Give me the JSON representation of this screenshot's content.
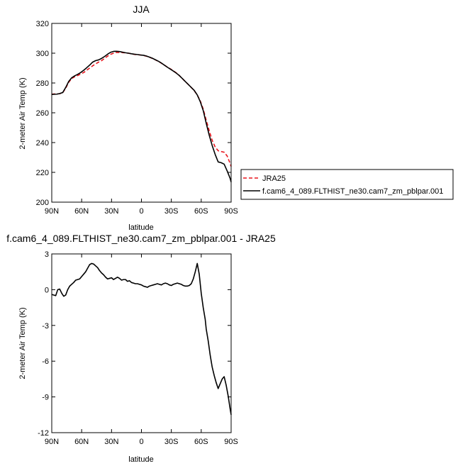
{
  "chart_data": [
    {
      "type": "line",
      "title": "JJA",
      "xlabel": "latitude",
      "ylabel": "2-meter Air Temp (K)",
      "xlim": [
        90,
        -90
      ],
      "ylim": [
        200,
        320
      ],
      "xticks": [
        90,
        60,
        30,
        0,
        -30,
        -60,
        -90
      ],
      "xtick_labels": [
        "90N",
        "60N",
        "30N",
        "0",
        "30S",
        "60S",
        "90S"
      ],
      "yticks": [
        200,
        220,
        240,
        260,
        280,
        300,
        320
      ],
      "ytick_labels": [
        "200",
        "220",
        "240",
        "260",
        "280",
        "300",
        "320"
      ],
      "legend_position": "right",
      "series": [
        {
          "name": "JRA25",
          "color": "#e8141c",
          "style": "dashed",
          "x": [
            90,
            88,
            85,
            82,
            79,
            76,
            73,
            70,
            67,
            64,
            61,
            58,
            55,
            52,
            49,
            46,
            43,
            40,
            37,
            34,
            31,
            28,
            25,
            22,
            19,
            16,
            13,
            10,
            7,
            4,
            1,
            -2,
            -5,
            -8,
            -11,
            -14,
            -17,
            -20,
            -23,
            -26,
            -29,
            -32,
            -35,
            -38,
            -41,
            -44,
            -47,
            -50,
            -53,
            -56,
            -59,
            -62,
            -65,
            -68,
            -71,
            -74,
            -77,
            -80,
            -83,
            -86,
            -89,
            -90
          ],
          "y": [
            272.5,
            272.6,
            272.7,
            272.8,
            273.5,
            276.5,
            280.5,
            283.0,
            284.2,
            285.0,
            286.0,
            287.0,
            288.5,
            290.0,
            291.5,
            292.8,
            294.0,
            295.0,
            296.5,
            298.0,
            299.2,
            300.0,
            300.5,
            300.5,
            300.4,
            300.2,
            300.0,
            299.6,
            299.2,
            299.0,
            298.8,
            298.5,
            298.0,
            297.3,
            296.5,
            295.5,
            294.5,
            293.3,
            292.0,
            290.7,
            289.5,
            288.2,
            286.8,
            285.0,
            283.0,
            281.0,
            279.0,
            277.0,
            274.8,
            272.0,
            268.0,
            262.5,
            255.0,
            248.0,
            241.5,
            237.0,
            234.5,
            234.0,
            233.5,
            231.0,
            226.0,
            224.0
          ]
        },
        {
          "name": "f.cam6_4_089.FLTHIST_ne30.cam7_zm_pblpar.001",
          "color": "#000000",
          "style": "solid",
          "x": [
            90,
            88,
            85,
            82,
            79,
            76,
            73,
            70,
            67,
            64,
            61,
            58,
            55,
            52,
            49,
            46,
            43,
            40,
            37,
            34,
            31,
            28,
            25,
            22,
            19,
            16,
            13,
            10,
            7,
            4,
            1,
            -2,
            -5,
            -8,
            -11,
            -14,
            -17,
            -20,
            -23,
            -26,
            -29,
            -32,
            -35,
            -38,
            -41,
            -44,
            -47,
            -50,
            -53,
            -56,
            -59,
            -62,
            -65,
            -68,
            -71,
            -74,
            -77,
            -80,
            -83,
            -86,
            -89,
            -90
          ],
          "y": [
            272.3,
            272.4,
            272.5,
            272.9,
            273.6,
            277.0,
            281.0,
            283.5,
            284.8,
            285.8,
            287.0,
            288.5,
            290.2,
            292.0,
            294.0,
            295.0,
            295.5,
            296.5,
            297.8,
            299.3,
            300.6,
            301.2,
            301.3,
            301.1,
            300.7,
            300.3,
            300.0,
            299.6,
            299.3,
            299.1,
            298.8,
            298.6,
            298.1,
            297.4,
            296.6,
            295.6,
            294.6,
            293.4,
            292.0,
            290.6,
            289.3,
            288.0,
            286.6,
            285.0,
            283.0,
            281.0,
            279.0,
            277.0,
            275.0,
            272.0,
            267.5,
            261.5,
            253.0,
            245.0,
            238.0,
            232.0,
            227.0,
            226.5,
            225.5,
            221.0,
            216.0,
            213.5
          ]
        }
      ]
    },
    {
      "type": "line",
      "title": "f.cam6_4_089.FLTHIST_ne30.cam7_zm_pblpar.001 - JRA25",
      "xlabel": "latitude",
      "ylabel": "2-meter Air Temp (K)",
      "xlim": [
        90,
        -90
      ],
      "ylim": [
        -12,
        3
      ],
      "xticks": [
        90,
        60,
        30,
        0,
        -30,
        -60,
        -90
      ],
      "xtick_labels": [
        "90N",
        "60N",
        "30N",
        "0",
        "30S",
        "60S",
        "90S"
      ],
      "yticks": [
        -12,
        -9,
        -6,
        -3,
        0,
        3
      ],
      "ytick_labels": [
        "-12",
        "-9",
        "-6",
        "-3",
        "0",
        "3"
      ],
      "series": [
        {
          "color": "#000000",
          "style": "solid",
          "x": [
            90,
            88,
            86,
            84,
            82,
            80,
            78,
            76,
            74,
            72,
            70,
            68,
            66,
            64,
            62,
            60,
            58,
            56,
            54,
            52,
            50,
            48,
            46,
            44,
            42,
            40,
            38,
            36,
            34,
            32,
            30,
            28,
            26,
            24,
            22,
            20,
            18,
            16,
            14,
            12,
            10,
            8,
            6,
            4,
            2,
            0,
            -2,
            -4,
            -6,
            -8,
            -10,
            -12,
            -14,
            -16,
            -18,
            -20,
            -22,
            -24,
            -26,
            -28,
            -30,
            -32,
            -34,
            -36,
            -38,
            -40,
            -42,
            -44,
            -46,
            -48,
            -50,
            -52,
            -54,
            -56,
            -58,
            -60,
            -62,
            -64,
            -65,
            -67,
            -69,
            -71,
            -73,
            -75,
            -77,
            -79,
            -81,
            -83,
            -85,
            -87,
            -89,
            -90
          ],
          "y": [
            -0.4,
            -0.45,
            -0.5,
            0.0,
            0.05,
            -0.3,
            -0.55,
            -0.45,
            0.0,
            0.3,
            0.45,
            0.6,
            0.8,
            0.85,
            0.9,
            1.1,
            1.3,
            1.5,
            1.8,
            2.1,
            2.2,
            2.15,
            2.0,
            1.85,
            1.6,
            1.4,
            1.25,
            1.05,
            0.9,
            0.95,
            1.0,
            0.85,
            0.95,
            1.05,
            0.95,
            0.8,
            0.85,
            0.85,
            0.7,
            0.75,
            0.6,
            0.55,
            0.5,
            0.5,
            0.45,
            0.4,
            0.3,
            0.25,
            0.2,
            0.3,
            0.35,
            0.4,
            0.45,
            0.5,
            0.45,
            0.4,
            0.5,
            0.55,
            0.5,
            0.4,
            0.35,
            0.45,
            0.5,
            0.55,
            0.5,
            0.45,
            0.35,
            0.3,
            0.3,
            0.35,
            0.5,
            0.9,
            1.5,
            2.2,
            1.3,
            -0.3,
            -1.5,
            -2.5,
            -3.3,
            -4.3,
            -5.5,
            -6.5,
            -7.2,
            -7.8,
            -8.3,
            -7.9,
            -7.5,
            -7.3,
            -8.0,
            -8.9,
            -10.0,
            -10.5
          ]
        }
      ]
    }
  ]
}
